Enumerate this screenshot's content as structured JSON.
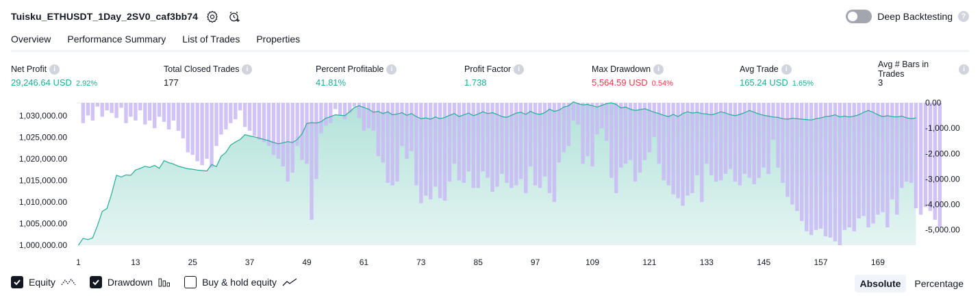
{
  "header": {
    "strategy_name": "Tuisku_ETHUSDT_1Day_2SV0_caf3bb74",
    "settings_icon": "settings-gear-icon",
    "alert_icon": "add-alert-clock-icon",
    "deep_backtesting_label": "Deep Backtesting",
    "deep_backtesting_on": false,
    "help_icon": "question-mark-icon"
  },
  "tabs": [
    {
      "label": "Overview",
      "active": true
    },
    {
      "label": "Performance Summary",
      "active": false
    },
    {
      "label": "List of Trades",
      "active": false
    },
    {
      "label": "Properties",
      "active": false
    }
  ],
  "metrics": [
    {
      "label": "Net Profit",
      "value": "29,246.64 USD",
      "pct": "2.92%",
      "tone": "pos"
    },
    {
      "label": "Total Closed Trades",
      "value": "177",
      "pct": "",
      "tone": "neutral"
    },
    {
      "label": "Percent Profitable",
      "value": "41.81%",
      "pct": "",
      "tone": "pos"
    },
    {
      "label": "Profit Factor",
      "value": "1.738",
      "pct": "",
      "tone": "pos"
    },
    {
      "label": "Max Drawdown",
      "value": "5,564.59 USD",
      "pct": "0.54%",
      "tone": "neg"
    },
    {
      "label": "Avg Trade",
      "value": "165.24 USD",
      "pct": "1.65%",
      "tone": "pos"
    },
    {
      "label": "Avg # Bars in Trades",
      "value": "3",
      "pct": "",
      "tone": "neutral"
    }
  ],
  "legend": {
    "equity": {
      "label": "Equity",
      "checked": true,
      "icon": "equity-line-icon"
    },
    "drawdown": {
      "label": "Drawdown",
      "checked": true,
      "icon": "drawdown-bars-icon"
    },
    "buy_hold": {
      "label": "Buy & hold equity",
      "checked": false,
      "icon": "buy-hold-line-icon"
    }
  },
  "scale": {
    "absolute_label": "Absolute",
    "percentage_label": "Percentage",
    "active": "Absolute"
  },
  "colors": {
    "equity_line": "#22ab94",
    "equity_fill": "#22ab94",
    "drawdown_bar": "#c9b8f5",
    "positive": "#22ab94",
    "negative": "#f23645"
  },
  "chart_data": {
    "type": "area",
    "x_ticks": [
      "1",
      "13",
      "25",
      "37",
      "49",
      "61",
      "73",
      "85",
      "97",
      "109",
      "121",
      "133",
      "145",
      "157",
      "169"
    ],
    "x_range": [
      1,
      177
    ],
    "equity_axis": {
      "ticks": [
        "1,000,000.00",
        "1,005,000.00",
        "1,010,000.00",
        "1,015,000.00",
        "1,020,000.00",
        "1,025,000.00",
        "1,030,000.00"
      ],
      "range": [
        1000000,
        1033000
      ]
    },
    "drawdown_axis": {
      "ticks": [
        "0.00",
        "-1,000.00",
        "-2,000.00",
        "-3,000.00",
        "-4,000.00",
        "-5,000.00"
      ],
      "range": [
        -5600,
        0
      ]
    },
    "equity_series": {
      "name": "Equity",
      "points": [
        [
          1,
          1000000
        ],
        [
          2,
          1001600
        ],
        [
          3,
          1001300
        ],
        [
          4,
          1001700
        ],
        [
          5,
          1004500
        ],
        [
          6,
          1007800
        ],
        [
          7,
          1008500
        ],
        [
          8,
          1012000
        ],
        [
          9,
          1016200
        ],
        [
          10,
          1015800
        ],
        [
          11,
          1016300
        ],
        [
          12,
          1016200
        ],
        [
          13,
          1017400
        ],
        [
          14,
          1017800
        ],
        [
          15,
          1018300
        ],
        [
          16,
          1018000
        ],
        [
          17,
          1018500
        ],
        [
          18,
          1017800
        ],
        [
          19,
          1019600
        ],
        [
          20,
          1019100
        ],
        [
          21,
          1018800
        ],
        [
          22,
          1018300
        ],
        [
          23,
          1018000
        ],
        [
          24,
          1017700
        ],
        [
          25,
          1017600
        ],
        [
          26,
          1017400
        ],
        [
          27,
          1017300
        ],
        [
          28,
          1017200
        ],
        [
          29,
          1018700
        ],
        [
          30,
          1018200
        ],
        [
          31,
          1020600
        ],
        [
          32,
          1021500
        ],
        [
          33,
          1023200
        ],
        [
          34,
          1023900
        ],
        [
          35,
          1024500
        ],
        [
          36,
          1025600
        ],
        [
          37,
          1025300
        ],
        [
          38,
          1025100
        ],
        [
          39,
          1024800
        ],
        [
          40,
          1024500
        ],
        [
          41,
          1024200
        ],
        [
          42,
          1023800
        ],
        [
          43,
          1023500
        ],
        [
          44,
          1023700
        ],
        [
          45,
          1024000
        ],
        [
          46,
          1023800
        ],
        [
          47,
          1024500
        ],
        [
          48,
          1025800
        ],
        [
          49,
          1028200
        ],
        [
          50,
          1028400
        ],
        [
          51,
          1028300
        ],
        [
          52,
          1028600
        ],
        [
          53,
          1029400
        ],
        [
          54,
          1029800
        ],
        [
          55,
          1030200
        ],
        [
          56,
          1030100
        ],
        [
          57,
          1030000
        ],
        [
          58,
          1030900
        ],
        [
          59,
          1031900
        ],
        [
          60,
          1032300
        ],
        [
          61,
          1031900
        ],
        [
          62,
          1031500
        ],
        [
          63,
          1030800
        ],
        [
          64,
          1031000
        ],
        [
          65,
          1030500
        ],
        [
          66,
          1030900
        ],
        [
          67,
          1030200
        ],
        [
          68,
          1030400
        ],
        [
          69,
          1030700
        ],
        [
          70,
          1030100
        ],
        [
          71,
          1030500
        ],
        [
          72,
          1029800
        ],
        [
          73,
          1029300
        ],
        [
          74,
          1029500
        ],
        [
          75,
          1029200
        ],
        [
          76,
          1029700
        ],
        [
          77,
          1029300
        ],
        [
          78,
          1029600
        ],
        [
          79,
          1030100
        ],
        [
          80,
          1030500
        ],
        [
          81,
          1029800
        ],
        [
          82,
          1030200
        ],
        [
          83,
          1030600
        ],
        [
          84,
          1030000
        ],
        [
          85,
          1030400
        ],
        [
          86,
          1030900
        ],
        [
          87,
          1030500
        ],
        [
          88,
          1030700
        ],
        [
          89,
          1030300
        ],
        [
          90,
          1029800
        ],
        [
          91,
          1029600
        ],
        [
          92,
          1030100
        ],
        [
          93,
          1030600
        ],
        [
          94,
          1030800
        ],
        [
          95,
          1030300
        ],
        [
          96,
          1031000
        ],
        [
          97,
          1030500
        ],
        [
          98,
          1030300
        ],
        [
          99,
          1030700
        ],
        [
          100,
          1031500
        ],
        [
          101,
          1031000
        ],
        [
          102,
          1031300
        ],
        [
          103,
          1032000
        ],
        [
          104,
          1032300
        ],
        [
          105,
          1033200
        ],
        [
          106,
          1032800
        ],
        [
          107,
          1032500
        ],
        [
          108,
          1032600
        ],
        [
          109,
          1032300
        ],
        [
          110,
          1032000
        ],
        [
          111,
          1032400
        ],
        [
          112,
          1032800
        ],
        [
          113,
          1033000
        ],
        [
          114,
          1032600
        ],
        [
          115,
          1031800
        ],
        [
          116,
          1032000
        ],
        [
          117,
          1031500
        ],
        [
          118,
          1031200
        ],
        [
          119,
          1031400
        ],
        [
          120,
          1031600
        ],
        [
          121,
          1031200
        ],
        [
          122,
          1030800
        ],
        [
          123,
          1030500
        ],
        [
          124,
          1030100
        ],
        [
          125,
          1029800
        ],
        [
          126,
          1030300
        ],
        [
          127,
          1029800
        ],
        [
          128,
          1030500
        ],
        [
          129,
          1030900
        ],
        [
          130,
          1030600
        ],
        [
          131,
          1030800
        ],
        [
          132,
          1030500
        ],
        [
          133,
          1030400
        ],
        [
          134,
          1030200
        ],
        [
          135,
          1030500
        ],
        [
          136,
          1030900
        ],
        [
          137,
          1030600
        ],
        [
          138,
          1030200
        ],
        [
          139,
          1030000
        ],
        [
          140,
          1030300
        ],
        [
          141,
          1030700
        ],
        [
          142,
          1031200
        ],
        [
          143,
          1030800
        ],
        [
          144,
          1030400
        ],
        [
          145,
          1030100
        ],
        [
          146,
          1029900
        ],
        [
          147,
          1029700
        ],
        [
          148,
          1029600
        ],
        [
          149,
          1029300
        ],
        [
          150,
          1029200
        ],
        [
          151,
          1029400
        ],
        [
          152,
          1029300
        ],
        [
          153,
          1029200
        ],
        [
          154,
          1029100
        ],
        [
          155,
          1029000
        ],
        [
          156,
          1029300
        ],
        [
          157,
          1029500
        ],
        [
          158,
          1029800
        ],
        [
          159,
          1029900
        ],
        [
          160,
          1030200
        ],
        [
          161,
          1029700
        ],
        [
          162,
          1029900
        ],
        [
          163,
          1029700
        ],
        [
          164,
          1029900
        ],
        [
          165,
          1030200
        ],
        [
          166,
          1030800
        ],
        [
          167,
          1031200
        ],
        [
          168,
          1030800
        ],
        [
          169,
          1030200
        ],
        [
          170,
          1029800
        ],
        [
          171,
          1030000
        ],
        [
          172,
          1029800
        ],
        [
          173,
          1029700
        ],
        [
          174,
          1029900
        ],
        [
          175,
          1029500
        ],
        [
          176,
          1029300
        ],
        [
          177,
          1029500
        ]
      ]
    },
    "drawdown_series": {
      "name": "Drawdown",
      "values": [
        -10,
        -800,
        -500,
        -700,
        -150,
        -550,
        -300,
        -400,
        -600,
        -200,
        -800,
        -550,
        -700,
        -300,
        -850,
        -700,
        -1000,
        -550,
        -750,
        -1050,
        -700,
        -1100,
        -1400,
        -1950,
        -2050,
        -2300,
        -2450,
        -2200,
        -2550,
        -1700,
        -1250,
        -1050,
        -800,
        -650,
        -300,
        -950,
        -1100,
        -1300,
        -1450,
        -1550,
        -1700,
        -2050,
        -2200,
        -2500,
        -3100,
        -2750,
        -1700,
        -2250,
        -2400,
        -4600,
        -3000,
        -1200,
        -900,
        -800,
        -250,
        -500,
        -650,
        -400,
        -150,
        -600,
        -1100,
        -1000,
        -1100,
        -2100,
        -2350,
        -3150,
        -3250,
        -3100,
        -1700,
        -2200,
        -1900,
        -3250,
        -3950,
        -3650,
        -3800,
        -3300,
        -3750,
        -3850,
        -3100,
        -2400,
        -3050,
        -3150,
        -2700,
        -3350,
        -3350,
        -2700,
        -2950,
        -3500,
        -3300,
        -2800,
        -3150,
        -3350,
        -3250,
        -3000,
        -3550,
        -2500,
        -3250,
        -3350,
        -2900,
        -3550,
        -3900,
        -2350,
        -1950,
        -1700,
        -700,
        -850,
        -2400,
        -2100,
        -2500,
        -1250,
        -1000,
        -1500,
        -2950,
        -3550,
        -2550,
        -2400,
        -2250,
        -3100,
        -2750,
        -2250,
        -1950,
        -1350,
        -2400,
        -3050,
        -3250,
        -3600,
        -3750,
        -4050,
        -3650,
        -3550,
        -2850,
        -3900,
        -2400,
        -2850,
        -3100,
        -3050,
        -2800,
        -2600,
        -3100,
        -3250,
        -2800,
        -2950,
        -3200,
        -2950,
        -2550,
        -2800,
        -1450,
        -2550,
        -3150,
        -3700,
        -4000,
        -4250,
        -4650,
        -5050,
        -5200,
        -5000,
        -4950,
        -5250,
        -5300,
        -5450,
        -5600,
        -5000,
        -4900,
        -5050,
        -4550,
        -4450,
        -4900,
        -4750,
        -4400,
        -4300,
        -4900,
        -3800,
        -4400,
        -3350,
        -3100,
        -3150,
        -4150,
        -4400,
        -4100,
        -4250,
        -4600,
        -4900
      ]
    }
  }
}
